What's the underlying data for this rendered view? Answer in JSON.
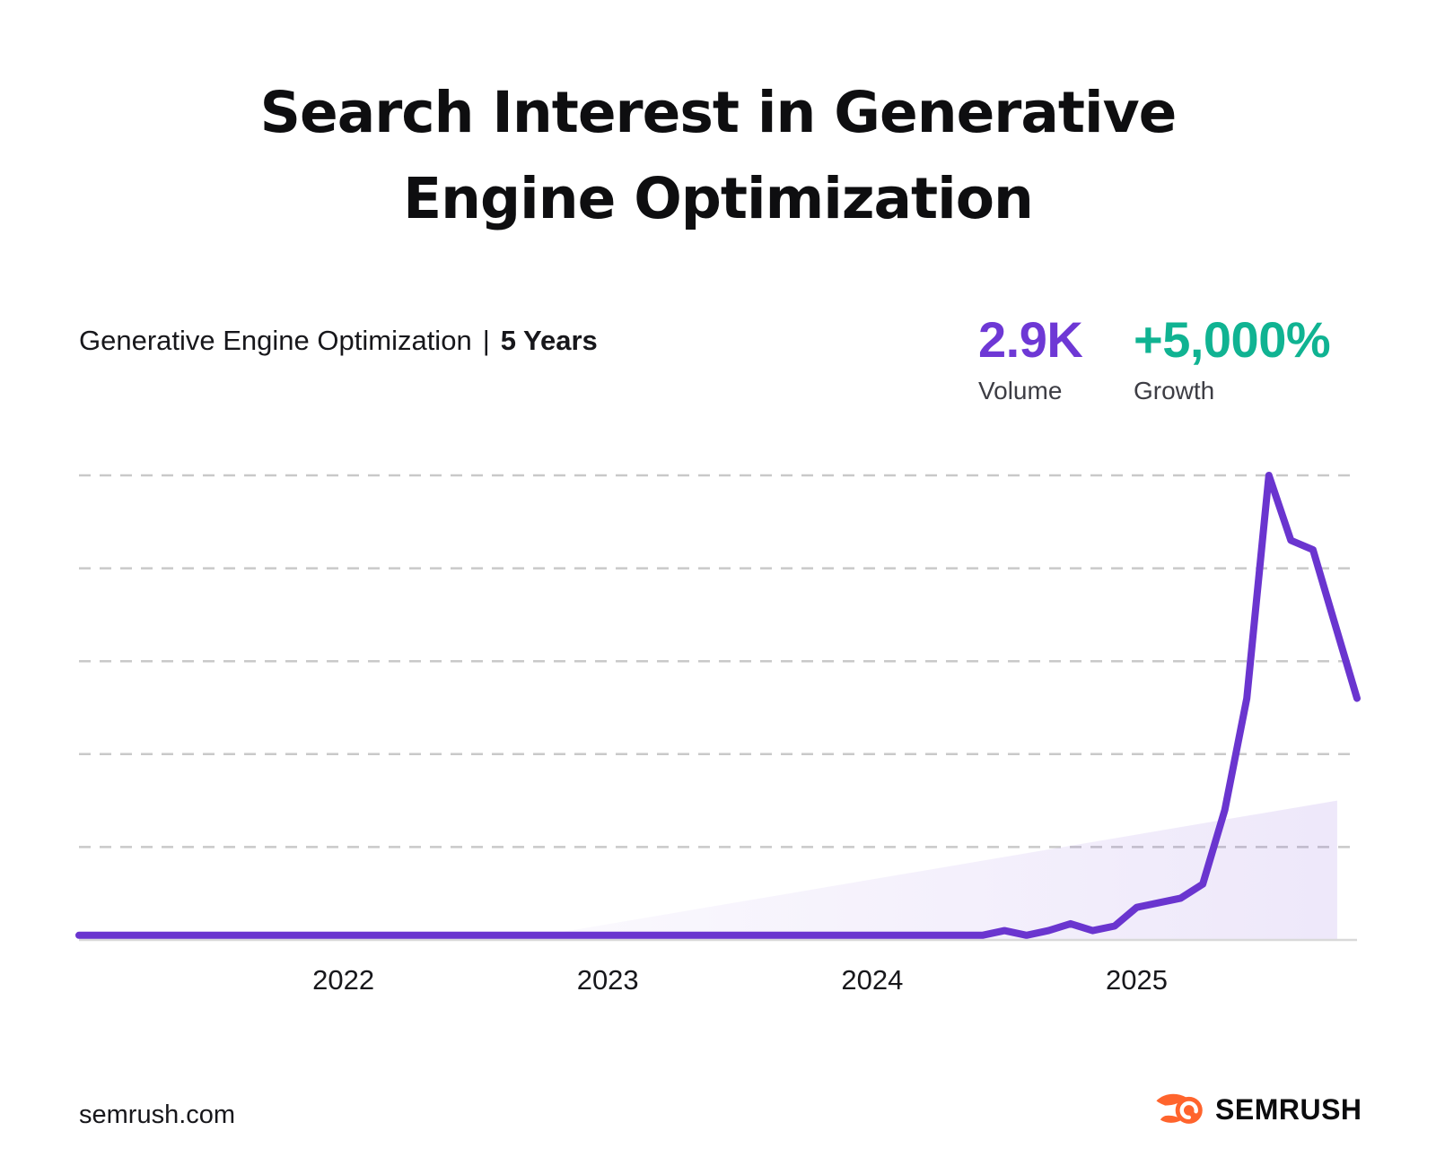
{
  "title": {
    "line1": "Search Interest in Generative",
    "line2": "Engine Optimization"
  },
  "subtitle": {
    "keyword": "Generative Engine Optimization",
    "separator": "|",
    "range": "5 Years"
  },
  "stats": {
    "volume": {
      "value": "2.9K",
      "label": "Volume",
      "color": "#6e38d5"
    },
    "growth": {
      "value": "+5,000%",
      "label": "Growth",
      "color": "#10b392"
    }
  },
  "footer": {
    "site": "semrush.com",
    "brand": "SEMRUSH"
  },
  "colors": {
    "background": "#ffffff",
    "title_text": "#0e0e10",
    "label_gray": "#3d3d44",
    "line_purple": "#6a35cf",
    "stat_purple": "#6e38d5",
    "growth_teal": "#10b392",
    "gridline": "#c9c9c9",
    "axis_line": "#d9d9d9",
    "logo_orange": "#ff642d"
  },
  "chart_data": {
    "type": "line",
    "title": "Search Interest in Generative Engine Optimization",
    "subtitle": "Generative Engine Optimization | 5 Years",
    "x_unit": "month",
    "x_range": [
      "2021-01",
      "2025-11"
    ],
    "x_ticks": [
      {
        "label": "2022",
        "month_index": 12
      },
      {
        "label": "2023",
        "month_index": 24
      },
      {
        "label": "2024",
        "month_index": 36
      },
      {
        "label": "2025",
        "month_index": 48
      }
    ],
    "xlabel": "",
    "ylabel": "",
    "ylim": [
      0,
      100
    ],
    "gridline_values": [
      20,
      40,
      60,
      80,
      100
    ],
    "grid": "dashed-horizontal",
    "legend": "none",
    "series": [
      {
        "name": "Generative Engine Optimization search interest",
        "color": "#6a35cf",
        "values": [
          1,
          1,
          1,
          1,
          1,
          1,
          1,
          1,
          1,
          1,
          1,
          1,
          1,
          1,
          1,
          1,
          1,
          1,
          1,
          1,
          1,
          1,
          1,
          1,
          1,
          1,
          1,
          1,
          1,
          1,
          1,
          1,
          1,
          1,
          1,
          1,
          1,
          1,
          1,
          1,
          1,
          1,
          2,
          1,
          2,
          3.5,
          2,
          3,
          7,
          8,
          9,
          12,
          28,
          52,
          100,
          86,
          84,
          68,
          52
        ]
      }
    ],
    "shade": {
      "shape": "triangle-gradient",
      "x_frac_start": 0.341,
      "x_frac_end": 0.9845,
      "value_at_end": 30,
      "color": "#7c4dd8",
      "opacity_start": 0.03,
      "opacity_end": 0.13
    }
  }
}
